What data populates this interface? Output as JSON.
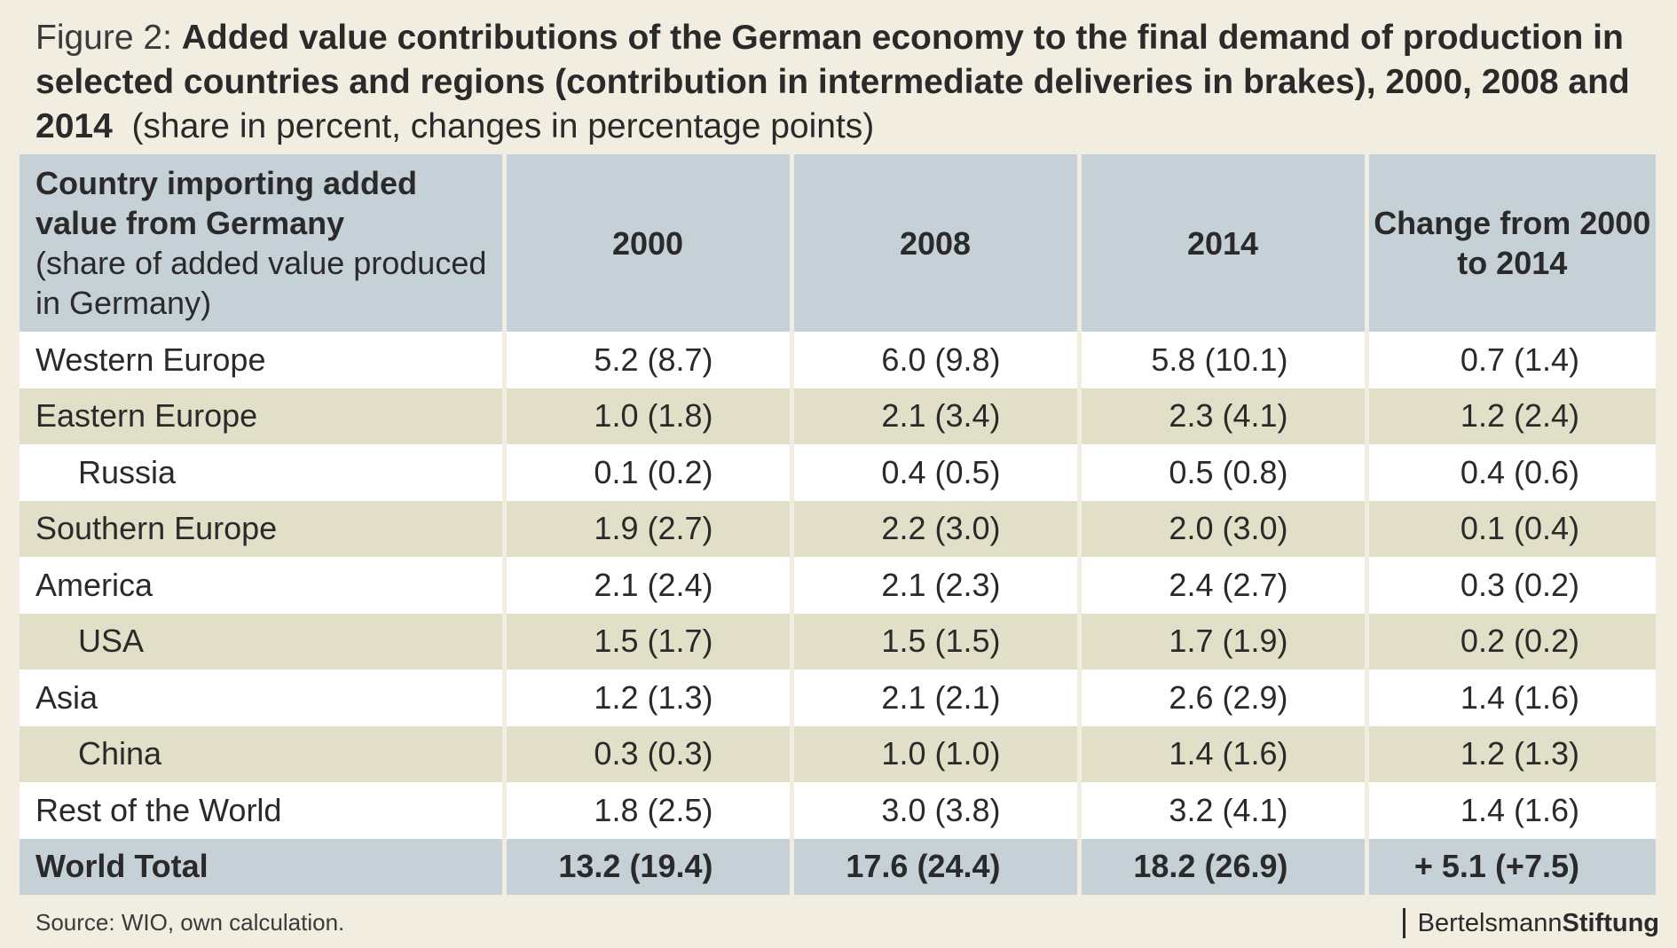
{
  "title": {
    "figure_label": "Figure 2:",
    "main": "Added value contributions of the German economy to the final demand of production in selected countries and regions (contribution in intermediate deliveries in brakes), 2000, 2008 and 2014",
    "subtitle": "(share in percent, changes in percentage points)"
  },
  "chart_data": {
    "type": "table",
    "columns": {
      "region_main": "Country importing added value from Germany",
      "region_sub": "(share of added value produced in Germany)",
      "y2000": "2000",
      "y2008": "2008",
      "y2014": "2014",
      "change": "Change from 2000 to 2014"
    },
    "rows": [
      {
        "region": "Western Europe",
        "indent": false,
        "y2000": "5.2 (8.7)",
        "y2008": "6.0 (9.8)",
        "y2014": "5.8 (10.1)",
        "change": "0.7 (1.4)"
      },
      {
        "region": "Eastern Europe",
        "indent": false,
        "y2000": "1.0 (1.8)",
        "y2008": "2.1 (3.4)",
        "y2014": "2.3 (4.1)",
        "change": "1.2 (2.4)"
      },
      {
        "region": "Russia",
        "indent": true,
        "y2000": "0.1 (0.2)",
        "y2008": "0.4 (0.5)",
        "y2014": "0.5 (0.8)",
        "change": "0.4 (0.6)"
      },
      {
        "region": "Southern Europe",
        "indent": false,
        "y2000": "1.9 (2.7)",
        "y2008": "2.2 (3.0)",
        "y2014": "2.0 (3.0)",
        "change": "0.1 (0.4)"
      },
      {
        "region": "America",
        "indent": false,
        "y2000": "2.1 (2.4)",
        "y2008": "2.1 (2.3)",
        "y2014": "2.4 (2.7)",
        "change": "0.3 (0.2)"
      },
      {
        "region": "USA",
        "indent": true,
        "y2000": "1.5 (1.7)",
        "y2008": "1.5 (1.5)",
        "y2014": "1.7 (1.9)",
        "change": "0.2 (0.2)"
      },
      {
        "region": "Asia",
        "indent": false,
        "y2000": "1.2 (1.3)",
        "y2008": "2.1 (2.1)",
        "y2014": "2.6 (2.9)",
        "change": "1.4 (1.6)"
      },
      {
        "region": "China",
        "indent": true,
        "y2000": "0.3 (0.3)",
        "y2008": "1.0 (1.0)",
        "y2014": "1.4 (1.6)",
        "change": "1.2 (1.3)"
      },
      {
        "region": "Rest of the World",
        "indent": false,
        "y2000": "1.8 (2.5)",
        "y2008": "3.0 (3.8)",
        "y2014": "3.2 (4.1)",
        "change": "1.4 (1.6)"
      }
    ],
    "total": {
      "region": "World Total",
      "y2000": "13.2 (19.4)",
      "y2008": "17.6 (24.4)",
      "y2014": "18.2 (26.9)",
      "change": "+ 5.1 (+7.5)"
    }
  },
  "footer": {
    "source": "Source: WIO, own calculation.",
    "brand_light": "Bertelsmann",
    "brand_bold": "Stiftung"
  },
  "colors": {
    "background": "#f1ede1",
    "header": "#c5d0d7",
    "row_white": "#ffffff",
    "row_beige": "#e1dfc7"
  }
}
